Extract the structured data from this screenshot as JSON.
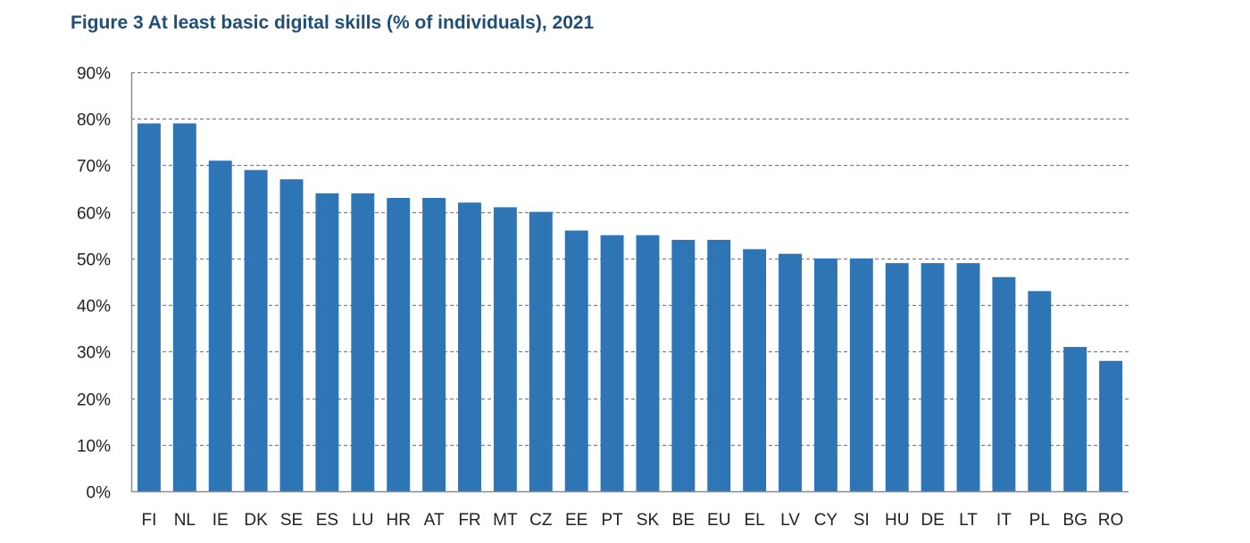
{
  "figure": {
    "title": "Figure 3 At least basic digital skills (% of individuals), 2021"
  },
  "chart_data": {
    "type": "bar",
    "title": "Figure 3 At least basic digital skills (% of individuals), 2021",
    "xlabel": "",
    "ylabel": "",
    "categories": [
      "FI",
      "NL",
      "IE",
      "DK",
      "SE",
      "ES",
      "LU",
      "HR",
      "AT",
      "FR",
      "MT",
      "CZ",
      "EE",
      "PT",
      "SK",
      "BE",
      "EU",
      "EL",
      "LV",
      "CY",
      "SI",
      "HU",
      "DE",
      "LT",
      "IT",
      "PL",
      "BG",
      "RO"
    ],
    "values": [
      79,
      79,
      71,
      69,
      67,
      64,
      64,
      63,
      63,
      62,
      61,
      60,
      56,
      55,
      55,
      54,
      54,
      52,
      51,
      50,
      50,
      49,
      49,
      49,
      46,
      43,
      31,
      28
    ],
    "ylim": [
      0,
      90
    ],
    "yticks": [
      "0%",
      "10%",
      "20%",
      "30%",
      "40%",
      "50%",
      "60%",
      "70%",
      "80%",
      "90%"
    ],
    "grid": true,
    "grid_style": "dashed",
    "legend": "none",
    "bar_color": "#2e75b6",
    "grid_color": "#7f7f7f"
  }
}
